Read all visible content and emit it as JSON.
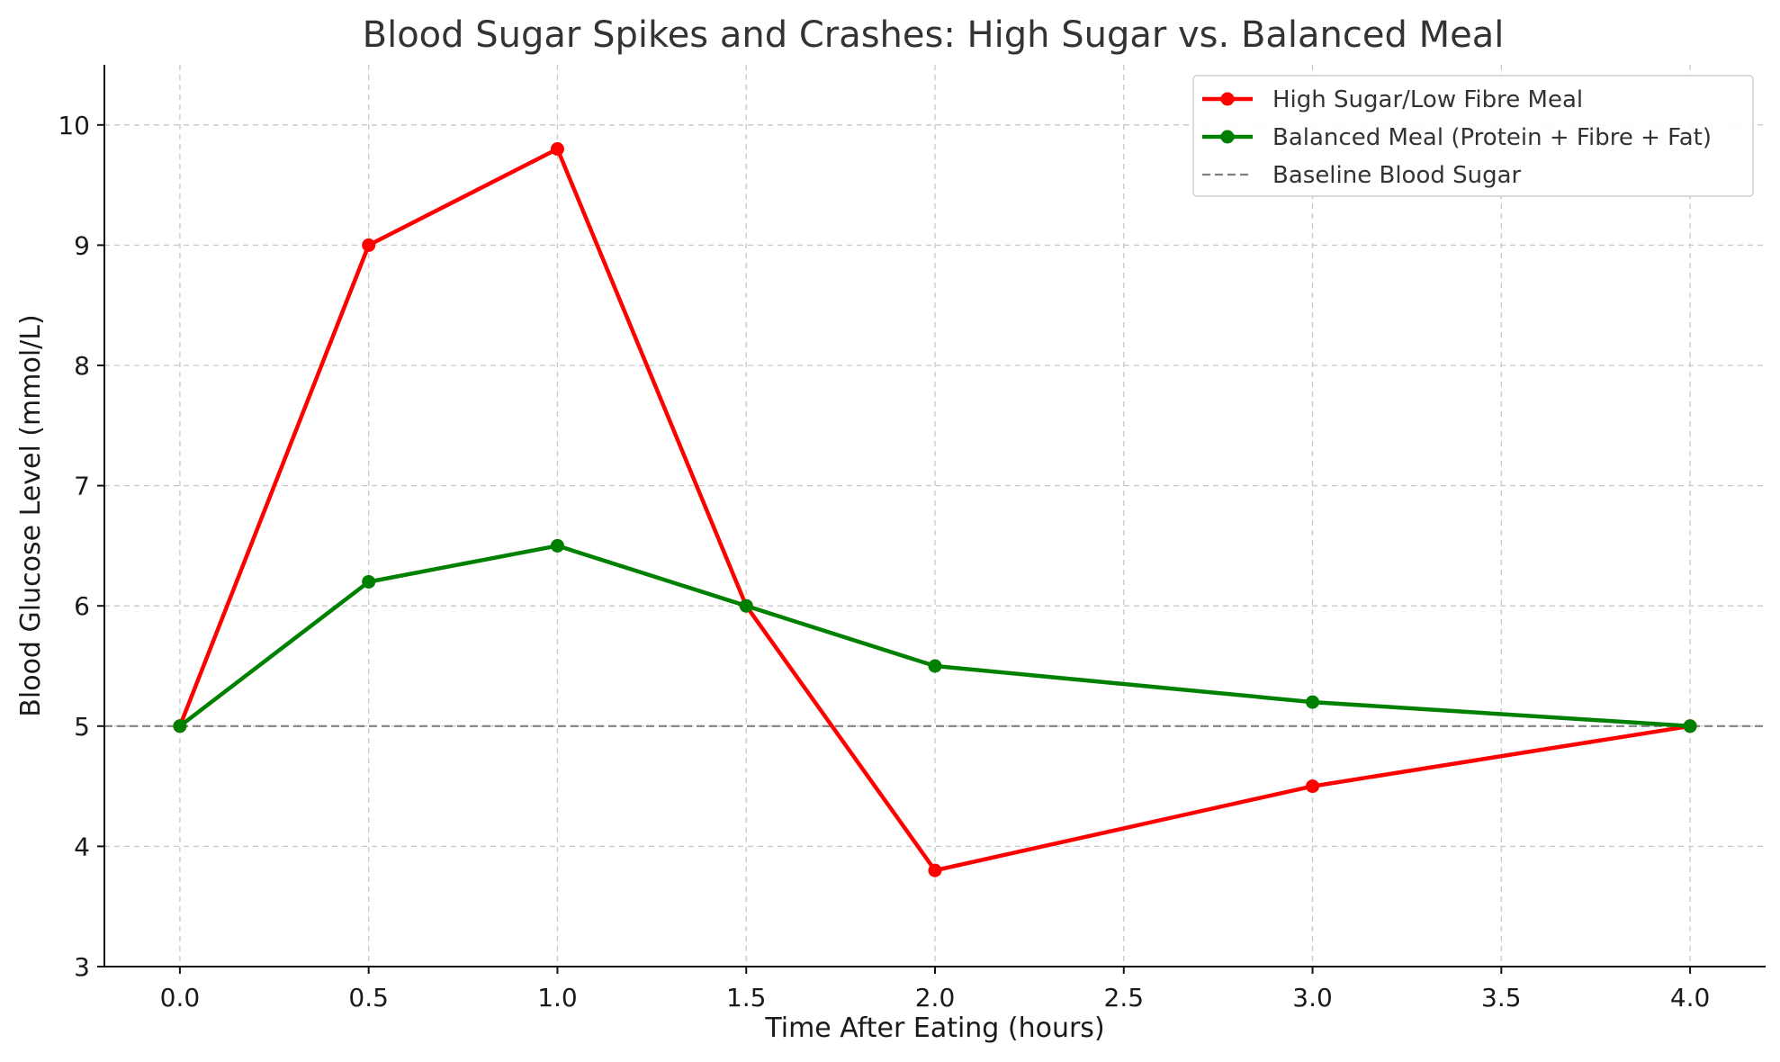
{
  "chart_data": {
    "type": "line",
    "title": "Blood Sugar Spikes and Crashes: High Sugar vs. Balanced Meal",
    "xlabel": "Time After Eating (hours)",
    "ylabel": "Blood Glucose Level (mmol/L)",
    "x": [
      0.0,
      0.5,
      1.0,
      1.5,
      2.0,
      3.0,
      4.0
    ],
    "xlim": [
      -0.2,
      4.2
    ],
    "ylim": [
      3,
      10.5
    ],
    "xticks": [
      "0.0",
      "0.5",
      "1.0",
      "1.5",
      "2.0",
      "2.5",
      "3.0",
      "3.5",
      "4.0"
    ],
    "yticks": [
      "3",
      "4",
      "5",
      "6",
      "7",
      "8",
      "9",
      "10"
    ],
    "grid": true,
    "legend_position": "top-right",
    "series": [
      {
        "name": "High Sugar/Low Fibre Meal",
        "color": "#ff0000",
        "style": "solid-marker",
        "values": [
          5.0,
          9.0,
          9.8,
          6.0,
          3.8,
          4.5,
          5.0
        ]
      },
      {
        "name": "Balanced Meal (Protein + Fibre + Fat)",
        "color": "#008000",
        "style": "solid-marker",
        "values": [
          5.0,
          6.2,
          6.5,
          6.0,
          5.5,
          5.2,
          5.0
        ]
      }
    ],
    "reference_lines": [
      {
        "name": "Baseline Blood Sugar",
        "y": 5,
        "color": "#808080",
        "style": "dashed"
      }
    ]
  }
}
